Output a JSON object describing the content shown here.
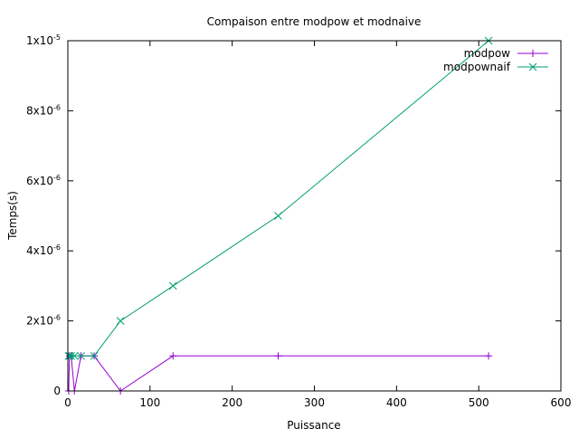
{
  "chart_data": {
    "type": "line",
    "title": "Compaison entre modpow et modnaive",
    "xlabel": "Puissance",
    "ylabel": "Temps(s)",
    "xlim": [
      0,
      600
    ],
    "ylim": [
      0,
      1e-05
    ],
    "grid": false,
    "legend_position": "top-right",
    "x_ticks": [
      {
        "value": 0,
        "label": "0"
      },
      {
        "value": 100,
        "label": "100"
      },
      {
        "value": 200,
        "label": "200"
      },
      {
        "value": 300,
        "label": "300"
      },
      {
        "value": 400,
        "label": "400"
      },
      {
        "value": 500,
        "label": "500"
      },
      {
        "value": 600,
        "label": "600"
      }
    ],
    "y_ticks": [
      {
        "value": 0,
        "mantissa": "0",
        "exponent": ""
      },
      {
        "value": 2e-06,
        "mantissa": "2x10",
        "exponent": "-6"
      },
      {
        "value": 4e-06,
        "mantissa": "4x10",
        "exponent": "-6"
      },
      {
        "value": 6e-06,
        "mantissa": "6x10",
        "exponent": "-6"
      },
      {
        "value": 8e-06,
        "mantissa": "8x10",
        "exponent": "-6"
      },
      {
        "value": 1e-05,
        "mantissa": "1x10",
        "exponent": "-5"
      }
    ],
    "series": [
      {
        "name": "modpow",
        "color": "#9400d3",
        "marker": "plus",
        "x": [
          1,
          2,
          4,
          8,
          16,
          32,
          64,
          128,
          256,
          512
        ],
        "y": [
          0,
          1e-06,
          1e-06,
          0,
          1e-06,
          1e-06,
          0,
          1e-06,
          1e-06,
          1e-06
        ]
      },
      {
        "name": "modpownaif",
        "color": "#009e73",
        "marker": "cross",
        "x": [
          1,
          2,
          4,
          8,
          16,
          32,
          64,
          128,
          256,
          512
        ],
        "y": [
          1e-06,
          1e-06,
          1e-06,
          1e-06,
          1e-06,
          1e-06,
          2e-06,
          3e-06,
          5e-06,
          1e-05
        ]
      }
    ]
  }
}
